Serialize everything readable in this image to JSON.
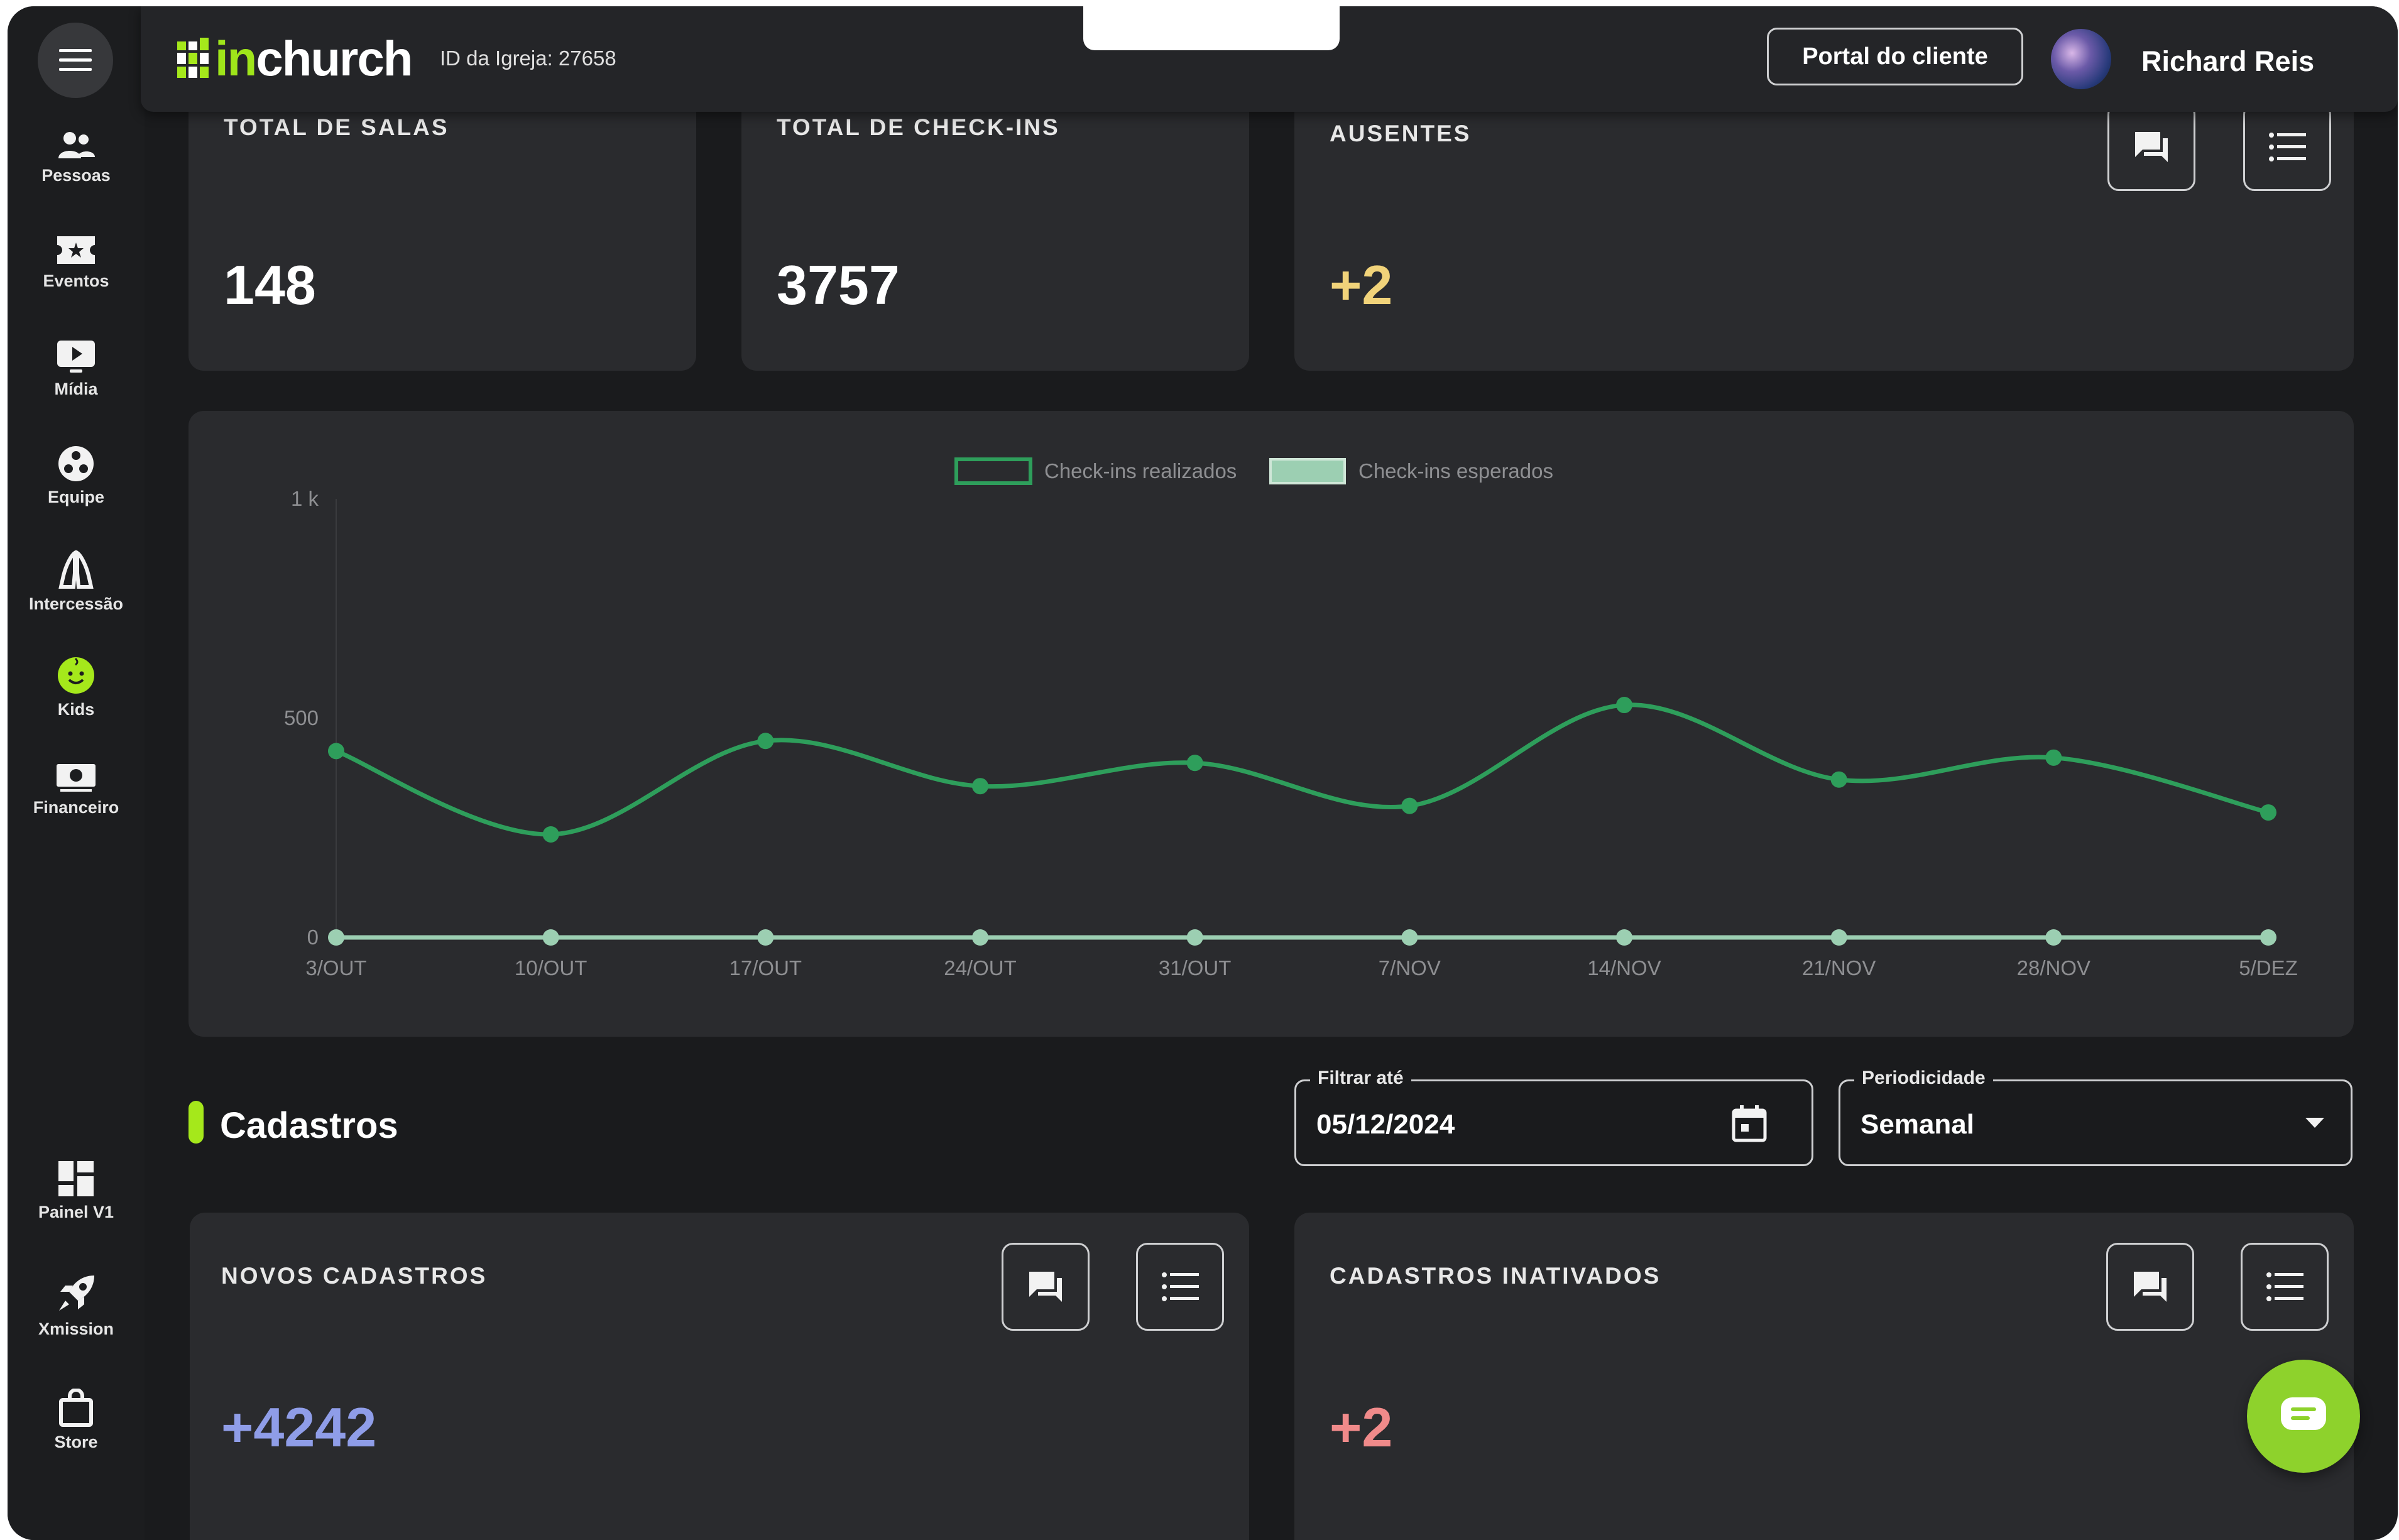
{
  "topbar": {
    "logo_prefix": "in",
    "logo_suffix": "church",
    "church_id": "ID da Igreja: 27658",
    "portal_button": "Portal do cliente",
    "user_name": "Richard Reis"
  },
  "sidebar": {
    "items": [
      {
        "label": "Pessoas",
        "icon": "people-icon"
      },
      {
        "label": "Eventos",
        "icon": "ticket-icon"
      },
      {
        "label": "Mídia",
        "icon": "play-icon"
      },
      {
        "label": "Equipe",
        "icon": "team-icon"
      },
      {
        "label": "Intercessão",
        "icon": "praying-hands-icon"
      },
      {
        "label": "Kids",
        "icon": "kids-icon"
      },
      {
        "label": "Financeiro",
        "icon": "money-icon"
      }
    ],
    "bottom_items": [
      {
        "label": "Painel V1",
        "icon": "dashboard-icon"
      },
      {
        "label": "Xmission",
        "icon": "rocket-icon"
      },
      {
        "label": "Store",
        "icon": "bag-icon"
      }
    ],
    "accent_color": "#a5e81b"
  },
  "stats": [
    {
      "title": "TOTAL DE SALAS",
      "value": "148",
      "color": "#ffffff"
    },
    {
      "title": "TOTAL DE CHECK-INS",
      "value": "3757",
      "color": "#ffffff"
    },
    {
      "title": "AUSENTES",
      "value": "+2",
      "color": "#f1d37a"
    }
  ],
  "chart_data": {
    "type": "line",
    "x": [
      "3/OUT",
      "10/OUT",
      "17/OUT",
      "24/OUT",
      "31/OUT",
      "7/NOV",
      "14/NOV",
      "21/NOV",
      "28/NOV",
      "5/DEZ"
    ],
    "y_ticks": [
      "0",
      "500",
      "1 k"
    ],
    "ylim": [
      0,
      1000
    ],
    "series": [
      {
        "name": "Check-ins realizados",
        "color": "#2e9e5b",
        "values": [
          425,
          235,
          448,
          345,
          398,
          300,
          530,
          360,
          410,
          285
        ]
      },
      {
        "name": "Check-ins esperados",
        "color": "#9ccfb2",
        "values": [
          0,
          0,
          0,
          0,
          0,
          0,
          0,
          0,
          0,
          0
        ]
      }
    ],
    "legend": "top-center",
    "grid": false
  },
  "cadastros": {
    "section_title": "Cadastros",
    "filter_label": "Filtrar até",
    "filter_value": "05/12/2024",
    "period_label": "Periodicidade",
    "period_value": "Semanal",
    "cards": [
      {
        "title": "NOVOS CADASTROS",
        "value": "+4242",
        "color": "#8f9de8"
      },
      {
        "title": "CADASTROS INATIVADOS",
        "value": "+2",
        "color": "#f08a8a"
      }
    ]
  }
}
